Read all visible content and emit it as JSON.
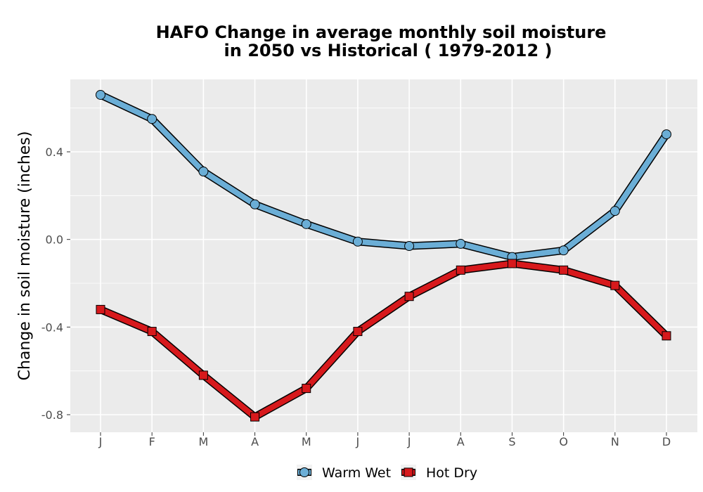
{
  "chart_data": {
    "type": "line",
    "title_line1": "HAFO  Change in average monthly soil moisture",
    "title_line2": "in 2050 vs Historical ( 1979-2012 )",
    "xlabel": "",
    "ylabel": "Change in soil moisture (inches)",
    "categories": [
      "J",
      "F",
      "M",
      "A",
      "M",
      "J",
      "J",
      "A",
      "S",
      "O",
      "N",
      "D"
    ],
    "ylim": [
      -0.88,
      0.73
    ],
    "yticks": [
      -0.8,
      -0.4,
      0.0,
      0.4
    ],
    "ytick_labels": [
      "-0.8",
      "-0.4",
      "0.0",
      "0.4"
    ],
    "grid": true,
    "legend_position": "bottom",
    "series": [
      {
        "name": "Warm Wet",
        "marker": "circle",
        "color": "#6baed6",
        "values": [
          0.66,
          0.55,
          0.31,
          0.16,
          0.07,
          -0.01,
          -0.03,
          -0.02,
          -0.08,
          -0.05,
          0.13,
          0.48
        ]
      },
      {
        "name": "Hot Dry",
        "marker": "square",
        "color": "#d7191c",
        "values": [
          -0.32,
          -0.42,
          -0.62,
          -0.81,
          -0.68,
          -0.42,
          -0.26,
          -0.14,
          -0.11,
          -0.14,
          -0.21,
          -0.44
        ]
      }
    ]
  },
  "colors": {
    "panel_background": "#ebebeb",
    "grid_line": "#ffffff",
    "outline": "#000000"
  }
}
